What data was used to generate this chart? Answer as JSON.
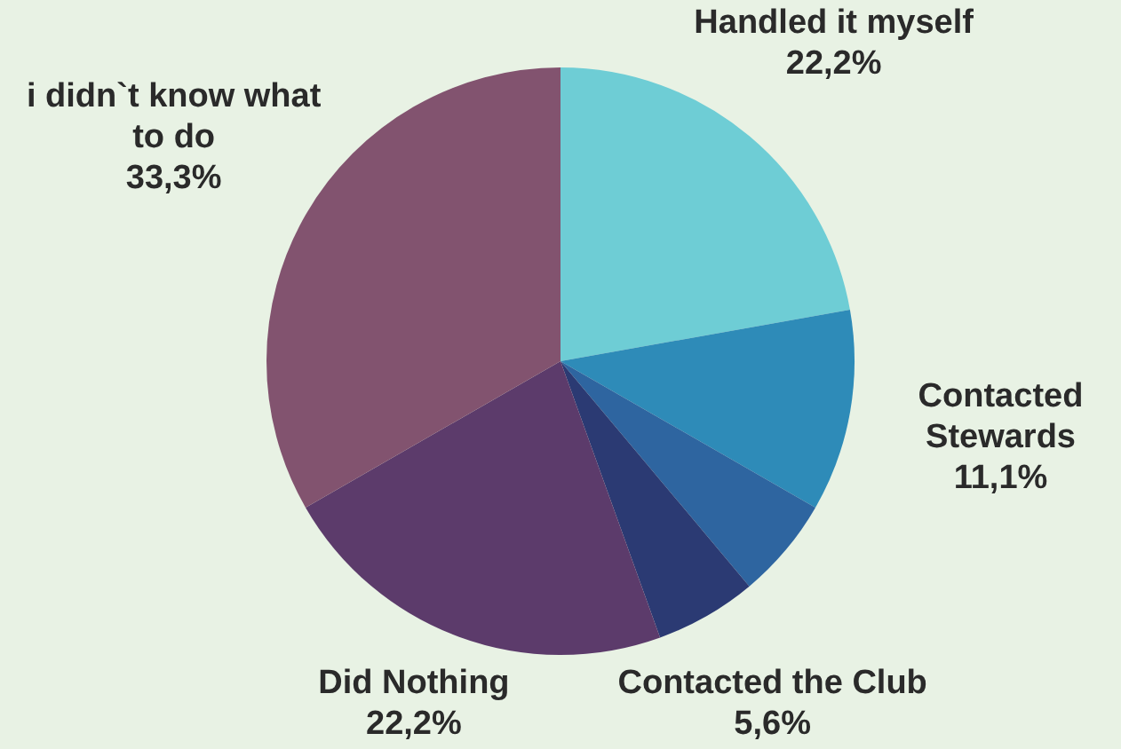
{
  "chart_data": {
    "type": "pie",
    "categories": [
      "Handled it myself",
      "Contacted Stewards",
      null,
      "Contacted the Club",
      "Did Nothing",
      "i didn`t know what to do"
    ],
    "values": [
      22.2,
      11.1,
      5.6,
      5.6,
      22.2,
      33.3
    ],
    "colors": [
      "#6ecdd5",
      "#2e8bb8",
      "#2e65a0",
      "#2b3a73",
      "#5c3b6b",
      "#82536f"
    ],
    "value_labels": [
      "22,2%",
      "11,1%",
      null,
      "5,6%",
      "22,2%",
      "33,3%"
    ]
  }
}
